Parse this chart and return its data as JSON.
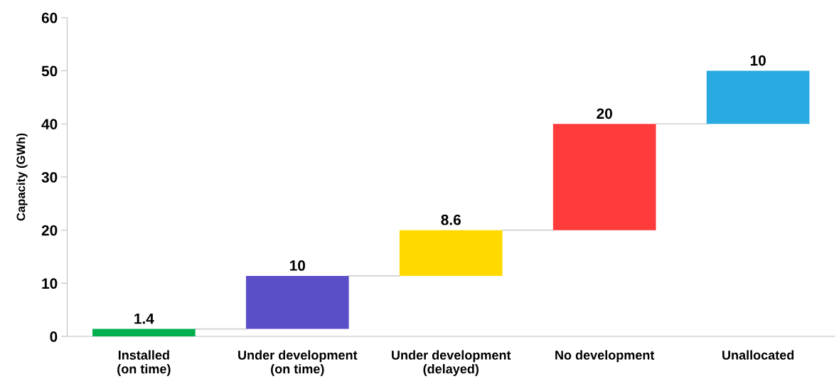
{
  "chart_data": {
    "type": "bar",
    "ylabel": "Capacity (GWh)",
    "categories": [
      "Installed\n(on time)",
      "Under development\n(on time)",
      "Under development\n(delayed)",
      "No development",
      "Unallocated"
    ],
    "values": [
      1.4,
      10,
      8.6,
      20,
      10
    ],
    "base": [
      0,
      1.4,
      11.4,
      20,
      40
    ],
    "colors": [
      "#00b050",
      "#5b4fc8",
      "#ffd900",
      "#ff3b3b",
      "#29abe2"
    ],
    "ylim": [
      0,
      60
    ],
    "yticks": [
      0,
      10,
      20,
      30,
      40,
      50,
      60
    ],
    "data_labels": true,
    "grid": false,
    "legend": false
  }
}
